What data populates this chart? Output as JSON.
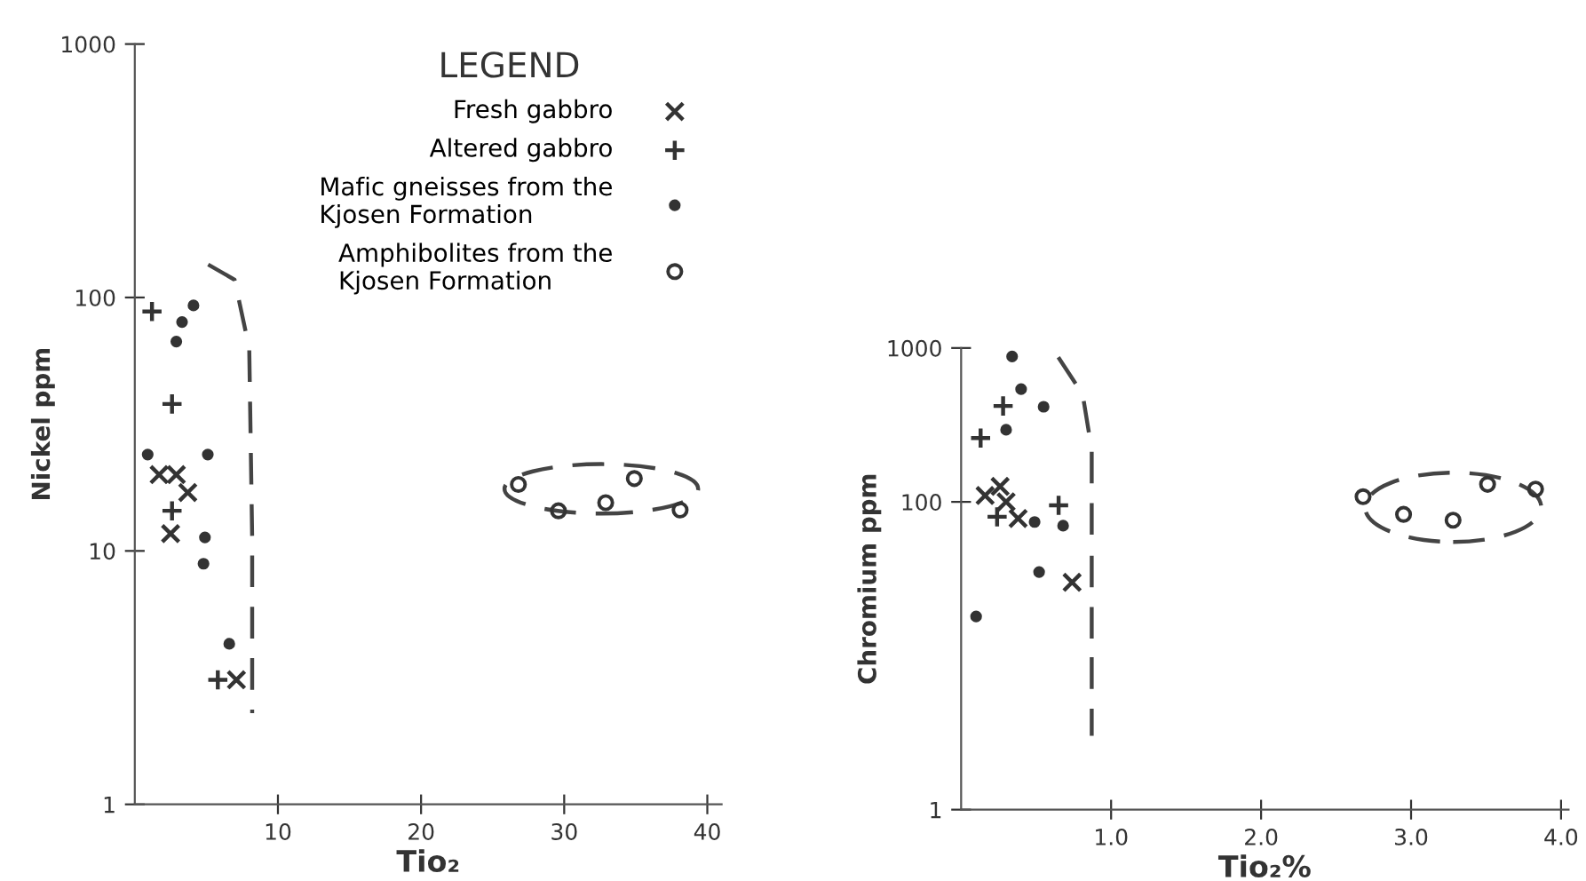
{
  "chart_data": [
    {
      "type": "scatter",
      "xlabel": "Tio₂",
      "ylabel": "Nickel ppm",
      "legend_title": "LEGEND",
      "legend": "top right",
      "log": "y",
      "grid": false,
      "xlim": [
        0,
        41
      ],
      "xticks": [
        10,
        20,
        30,
        40
      ],
      "ylim": [
        1,
        1000
      ],
      "yticks": [
        1,
        10,
        100,
        1000
      ],
      "series": [
        {
          "name": "Fresh gabbro",
          "marker": "cross",
          "color": "#333333",
          "x": [
            1.7,
            2.9,
            3.7,
            2.5,
            7.1
          ],
          "values": [
            20,
            20,
            17,
            11.7,
            3.1
          ]
        },
        {
          "name": "Altered gabbro",
          "marker": "cross",
          "color": "#333333",
          "x": [
            1.2,
            2.6,
            2.6,
            5.8
          ],
          "values": [
            88,
            38,
            14.4,
            3.1
          ]
        },
        {
          "name": "Mafic gneisses from the\nKjosen Formation",
          "marker": "circle",
          "color": "#333333",
          "x": [
            0.9,
            2.9,
            3.3,
            4.1,
            5.1,
            4.9,
            4.8,
            6.6
          ],
          "values": [
            24,
            67,
            80,
            93,
            24,
            11.3,
            8.9,
            4.3
          ]
        },
        {
          "name": "Amphibolites from the\nKjosen Formation",
          "marker": "circle",
          "color": "#333333",
          "x": [
            26.8,
            29.6,
            32.9,
            34.9,
            38.1
          ],
          "values": [
            18.3,
            14.4,
            15.5,
            19.3,
            14.5
          ]
        }
      ]
    },
    {
      "type": "scatter",
      "xlabel": "Tio₂%",
      "ylabel": "Chromium ppm",
      "log": "y",
      "grid": false,
      "xlim": [
        0,
        4.05
      ],
      "xticks": [
        {
          "value": 1,
          "label": "1.0"
        },
        {
          "value": 2,
          "label": "2.0"
        },
        {
          "value": 3,
          "label": "3.0"
        },
        {
          "value": 4,
          "label": "4.0"
        }
      ],
      "ylim": [
        1,
        1000
      ],
      "yticks": [
        1,
        100,
        1000
      ],
      "series": [
        {
          "marker": "cross",
          "color": "#333333",
          "x": [
            0.26,
            0.16,
            0.3,
            0.38,
            0.74
          ],
          "values": [
            126,
            110,
            100,
            78,
            30
          ]
        },
        {
          "marker": "cross",
          "color": "#333333",
          "x": [
            0.28,
            0.13,
            0.24,
            0.65
          ],
          "values": [
            420,
            260,
            80,
            95
          ]
        },
        {
          "marker": "circle",
          "color": "#333333",
          "x": [
            0.34,
            0.4,
            0.55,
            0.3,
            0.49,
            0.68,
            0.52,
            0.1
          ],
          "values": [
            880,
            540,
            415,
            294,
            74,
            70,
            35,
            18
          ]
        },
        {
          "marker": "circle",
          "color": "#333333",
          "x": [
            2.68,
            2.95,
            3.28,
            3.51,
            3.83
          ],
          "values": [
            108,
            83,
            76,
            130,
            121
          ]
        }
      ]
    }
  ]
}
